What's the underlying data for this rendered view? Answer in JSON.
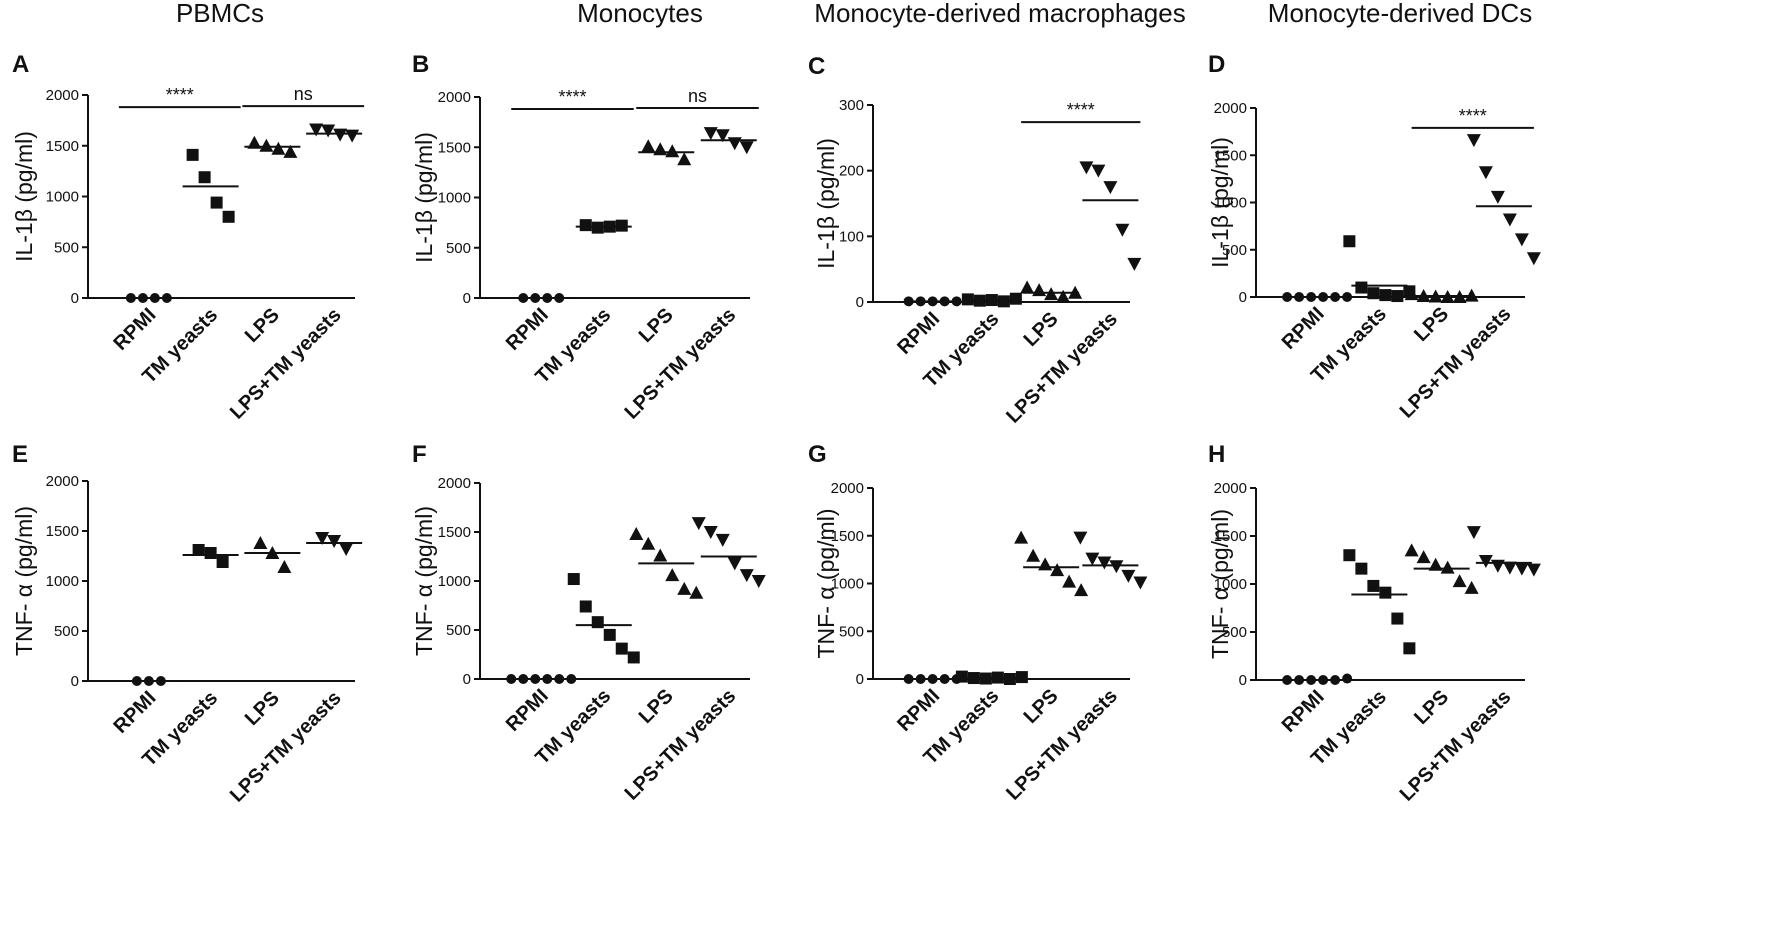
{
  "column_titles": [
    "PBMCs",
    "Monocytes",
    "Monocyte-derived macrophages",
    "Monocyte-derived DCs"
  ],
  "marker_shapes": [
    "circle",
    "square",
    "triangle-up",
    "triangle-down"
  ],
  "chart_data": [
    {
      "panel": "A",
      "type": "scatter",
      "categories": [
        "RPMI",
        "TM yeasts",
        "LPS",
        "LPS+TM yeasts"
      ],
      "ylabel": "IL-1β  (pg/ml)",
      "ylim": [
        0,
        2000
      ],
      "yticks": [
        0,
        500,
        1000,
        1500,
        2000
      ],
      "groups": [
        [
          0,
          0,
          0,
          0
        ],
        [
          1410,
          1190,
          940,
          800
        ],
        [
          1530,
          1500,
          1470,
          1440
        ],
        [
          1660,
          1650,
          1610,
          1600
        ]
      ],
      "means": [
        0,
        1100,
        1490,
        1620
      ],
      "significance": [
        {
          "from": 0,
          "to": 1,
          "label": "****",
          "y": 1880
        },
        {
          "from": 2,
          "to": 3,
          "label": "ns",
          "y": 1890
        }
      ]
    },
    {
      "panel": "B",
      "type": "scatter",
      "categories": [
        "RPMI",
        "TM yeasts",
        "LPS",
        "LPS+TM yeasts"
      ],
      "ylabel": "IL-1β  (pg/ml)",
      "ylim": [
        0,
        2000
      ],
      "yticks": [
        0,
        500,
        1000,
        1500,
        2000
      ],
      "groups": [
        [
          0,
          0,
          0,
          0
        ],
        [
          725,
          700,
          710,
          720
        ],
        [
          1510,
          1480,
          1460,
          1380
        ],
        [
          1640,
          1620,
          1540,
          1500
        ]
      ],
      "means": [
        0,
        710,
        1450,
        1570
      ],
      "significance": [
        {
          "from": 0,
          "to": 1,
          "label": "****",
          "y": 1880
        },
        {
          "from": 2,
          "to": 3,
          "label": "ns",
          "y": 1890
        }
      ]
    },
    {
      "panel": "C",
      "type": "scatter",
      "categories": [
        "RPMI",
        "TM yeasts",
        "LPS",
        "LPS+TM yeasts"
      ],
      "ylabel": "IL-1β  (pg/ml)",
      "ylim": [
        0,
        300
      ],
      "yticks": [
        0,
        100,
        200,
        300
      ],
      "groups": [
        [
          1,
          1,
          1,
          1,
          1
        ],
        [
          4,
          2,
          3,
          1,
          5
        ],
        [
          22,
          18,
          12,
          8,
          14
        ],
        [
          205,
          200,
          175,
          110,
          58
        ]
      ],
      "means": [
        1,
        3,
        14,
        155
      ],
      "significance": [
        {
          "from": 2,
          "to": 3,
          "label": "****",
          "y": 274
        }
      ]
    },
    {
      "panel": "D",
      "type": "scatter",
      "categories": [
        "RPMI",
        "TM yeasts",
        "LPS",
        "LPS+TM yeasts"
      ],
      "ylabel": "IL-1β  (pg/ml)",
      "ylim": [
        0,
        2000
      ],
      "yticks": [
        0,
        500,
        1000,
        1500,
        2000
      ],
      "groups": [
        [
          0,
          0,
          0,
          0,
          0,
          0
        ],
        [
          590,
          100,
          40,
          20,
          10,
          60
        ],
        [
          30,
          10,
          5,
          0,
          0,
          15
        ],
        [
          1660,
          1320,
          1060,
          820,
          610,
          410
        ]
      ],
      "means": [
        0,
        120,
        10,
        960
      ],
      "significance": [
        {
          "from": 2,
          "to": 3,
          "label": "****",
          "y": 1790
        }
      ]
    },
    {
      "panel": "E",
      "type": "scatter",
      "categories": [
        "RPMI",
        "TM yeasts",
        "LPS",
        "LPS+TM yeasts"
      ],
      "ylabel": "TNF- α (pg/ml)",
      "ylim": [
        0,
        2000
      ],
      "yticks": [
        0,
        500,
        1000,
        1500,
        2000
      ],
      "groups": [
        [
          0,
          0,
          0
        ],
        [
          1310,
          1280,
          1190
        ],
        [
          1380,
          1280,
          1140
        ],
        [
          1430,
          1400,
          1320
        ]
      ],
      "means": [
        0,
        1260,
        1280,
        1380
      ],
      "significance": []
    },
    {
      "panel": "F",
      "type": "scatter",
      "categories": [
        "RPMI",
        "TM yeasts",
        "LPS",
        "LPS+TM yeasts"
      ],
      "ylabel": "TNF- α (pg/ml)",
      "ylim": [
        0,
        2000
      ],
      "yticks": [
        0,
        500,
        1000,
        1500,
        2000
      ],
      "groups": [
        [
          0,
          0,
          0,
          0,
          0,
          0
        ],
        [
          1020,
          740,
          580,
          450,
          310,
          220
        ],
        [
          1480,
          1380,
          1260,
          1060,
          920,
          880
        ],
        [
          1590,
          1500,
          1420,
          1180,
          1060,
          1000
        ]
      ],
      "means": [
        0,
        550,
        1180,
        1250
      ],
      "significance": []
    },
    {
      "panel": "G",
      "type": "scatter",
      "categories": [
        "RPMI",
        "TM yeasts",
        "LPS",
        "LPS+TM yeasts"
      ],
      "ylabel": "TNF- α (pg/ml)",
      "ylim": [
        0,
        2000
      ],
      "yticks": [
        0,
        500,
        1000,
        1500,
        2000
      ],
      "groups": [
        [
          0,
          0,
          0,
          0,
          0
        ],
        [
          25,
          10,
          5,
          15,
          0,
          20
        ],
        [
          1480,
          1290,
          1200,
          1140,
          1020,
          930
        ],
        [
          1480,
          1260,
          1220,
          1180,
          1080,
          1010
        ]
      ],
      "means": [
        0,
        10,
        1170,
        1190
      ],
      "significance": []
    },
    {
      "panel": "H",
      "type": "scatter",
      "categories": [
        "RPMI",
        "TM yeasts",
        "LPS",
        "LPS+TM yeasts"
      ],
      "ylabel": "TNF- α (pg/ml)",
      "ylim": [
        0,
        2000
      ],
      "yticks": [
        0,
        500,
        1000,
        1500,
        2000
      ],
      "groups": [
        [
          0,
          0,
          0,
          0,
          0,
          15
        ],
        [
          1300,
          1160,
          980,
          910,
          640,
          330
        ],
        [
          1350,
          1280,
          1200,
          1170,
          1030,
          960
        ],
        [
          1540,
          1240,
          1190,
          1170,
          1160,
          1150
        ]
      ],
      "means": [
        0,
        890,
        1160,
        1220
      ],
      "significance": []
    }
  ]
}
